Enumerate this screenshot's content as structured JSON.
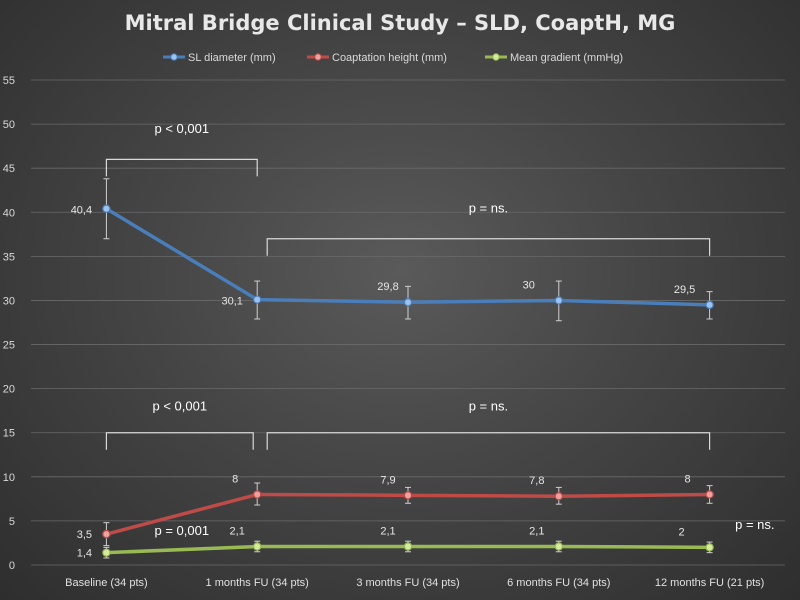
{
  "chart_data": {
    "type": "line",
    "title": "Mitral Bridge Clinical Study – SLD, CoaptH, MG",
    "xlabel": "",
    "ylabel": "",
    "ylim": [
      0,
      55
    ],
    "yticks": [
      0,
      5,
      10,
      15,
      20,
      25,
      30,
      35,
      40,
      45,
      50,
      55
    ],
    "grid": true,
    "legend_position": "top",
    "categories": [
      "Baseline (34 pts)",
      "1 months FU (34 pts)",
      "3 months FU (34 pts)",
      "6 months FU (34 pts)",
      "12 months FU (21 pts)"
    ],
    "series": [
      {
        "name": "SL diameter (mm)",
        "color": "#4a7ebb",
        "marker_color": "#9cc3f0",
        "values": [
          40.4,
          30.1,
          29.8,
          30,
          29.5
        ],
        "labels": [
          "40,4",
          "30,1",
          "29,8",
          "30",
          "29,5"
        ],
        "error_low": [
          37.0,
          27.9,
          27.9,
          27.7,
          27.9
        ],
        "error_high": [
          43.8,
          32.2,
          31.6,
          32.2,
          31.0
        ]
      },
      {
        "name": "Coaptation height (mm)",
        "color": "#be4b48",
        "marker_color": "#eaa3a1",
        "values": [
          3.5,
          8,
          7.9,
          7.8,
          8
        ],
        "labels": [
          "3,5",
          "8",
          "7,9",
          "7,8",
          "8"
        ],
        "error_low": [
          2.2,
          6.8,
          7.0,
          6.9,
          7.0
        ],
        "error_high": [
          4.8,
          9.3,
          8.8,
          8.8,
          9.0
        ]
      },
      {
        "name": "Mean gradient (mmHg)",
        "color": "#98b954",
        "marker_color": "#d6ec9c",
        "values": [
          1.4,
          2.1,
          2.1,
          2.1,
          2
        ],
        "labels": [
          "1,4",
          "2,1",
          "2,1",
          "2,1",
          "2"
        ],
        "error_low": [
          0.8,
          1.5,
          1.5,
          1.5,
          1.4
        ],
        "error_high": [
          2.0,
          2.7,
          2.7,
          2.7,
          2.6
        ]
      }
    ],
    "annotations": [
      {
        "text": "p < 0,001",
        "bracket_from": 0,
        "bracket_to": 1,
        "level": 46,
        "text_level": 49
      },
      {
        "text": "p = ns.",
        "bracket_from": 1,
        "bracket_to": 4,
        "level": 37,
        "text_level": 40
      },
      {
        "text": "p < 0,001",
        "bracket_from": 0,
        "bracket_to": 1,
        "level": 15,
        "text_level": 17.5
      },
      {
        "text": "p = ns.",
        "bracket_from": 1,
        "bracket_to": 4,
        "level": 15,
        "text_level": 17.5
      },
      {
        "text": "p = 0,001",
        "at_category": 0.5,
        "text_level": 3.4
      },
      {
        "text": "p = ns.",
        "at_category": 4.3,
        "text_level": 4.1
      }
    ]
  }
}
